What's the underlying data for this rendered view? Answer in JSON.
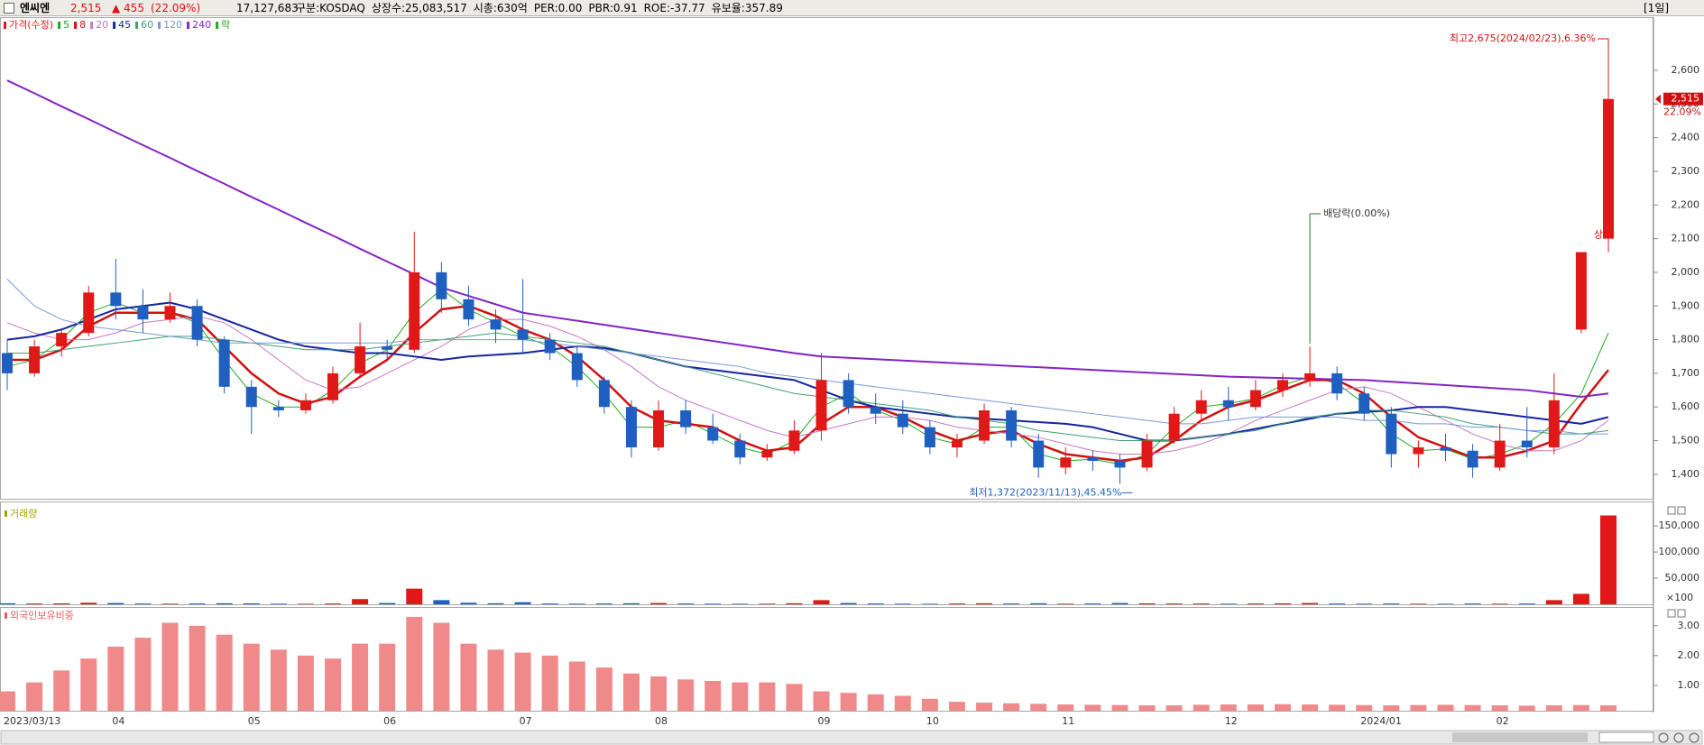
{
  "header": {
    "name": "엔씨엔",
    "price": "2,515",
    "change": "▲ 455",
    "change_pct": "(22.09%)",
    "volume": "17,127,683",
    "fields": [
      "구분:KOSDAQ",
      "상장수:25,083,517",
      "시총:630억",
      "PER:0.00",
      "PBR:0.91",
      "ROE:-37.77",
      "유보율:357.89"
    ],
    "period": "[1일]"
  },
  "chart_data": [
    {
      "type": "candlestick",
      "legend_price": "가격(수정)",
      "legend_ex_dividend": "락",
      "up_color": "#e01818",
      "down_color": "#1f5fbf",
      "categories": [
        "2023/03/13",
        null,
        null,
        null,
        "04",
        null,
        null,
        null,
        null,
        "05",
        null,
        null,
        null,
        null,
        "06",
        null,
        null,
        null,
        null,
        "07",
        null,
        null,
        null,
        null,
        "08",
        null,
        null,
        null,
        null,
        null,
        "09",
        null,
        null,
        null,
        "10",
        null,
        null,
        null,
        null,
        "11",
        null,
        null,
        null,
        null,
        null,
        "12",
        null,
        null,
        null,
        null,
        "2024/01",
        null,
        null,
        null,
        null,
        "02",
        null,
        null,
        null,
        null
      ],
      "open": [
        1760,
        1700,
        1780,
        1820,
        1940,
        1900,
        1860,
        1900,
        1800,
        1660,
        1600,
        1590,
        1620,
        1700,
        1780,
        1770,
        2000,
        1920,
        1860,
        1830,
        1800,
        1760,
        1680,
        1600,
        1480,
        1590,
        1540,
        1500,
        1450,
        1470,
        1530,
        1680,
        1600,
        1580,
        1540,
        1480,
        1500,
        1590,
        1500,
        1420,
        1450,
        1440,
        1420,
        1500,
        1580,
        1620,
        1600,
        1650,
        1680,
        1700,
        1640,
        1580,
        1460,
        1480,
        1470,
        1420,
        1500,
        1480,
        1830,
        2100
      ],
      "high": [
        1800,
        1800,
        1830,
        1960,
        2040,
        1950,
        1940,
        1920,
        1810,
        1680,
        1620,
        1640,
        1720,
        1850,
        1800,
        2120,
        2030,
        1960,
        1890,
        1980,
        1820,
        1780,
        1690,
        1620,
        1620,
        1620,
        1580,
        1520,
        1490,
        1560,
        1760,
        1700,
        1640,
        1620,
        1560,
        1520,
        1610,
        1600,
        1520,
        1480,
        1470,
        1460,
        1520,
        1600,
        1650,
        1660,
        1680,
        1700,
        1780,
        1720,
        1660,
        1600,
        1500,
        1520,
        1490,
        1550,
        1600,
        1700,
        2060,
        2675
      ],
      "low": [
        1650,
        1690,
        1750,
        1810,
        1860,
        1820,
        1850,
        1780,
        1640,
        1520,
        1570,
        1580,
        1610,
        1690,
        1740,
        1760,
        1880,
        1840,
        1790,
        1760,
        1740,
        1660,
        1580,
        1450,
        1470,
        1520,
        1490,
        1430,
        1440,
        1460,
        1500,
        1580,
        1550,
        1520,
        1460,
        1450,
        1490,
        1480,
        1390,
        1400,
        1410,
        1372,
        1410,
        1490,
        1560,
        1560,
        1590,
        1630,
        1660,
        1620,
        1560,
        1420,
        1420,
        1440,
        1390,
        1410,
        1450,
        1460,
        1820,
        2060
      ],
      "close": [
        1700,
        1780,
        1820,
        1940,
        1900,
        1860,
        1900,
        1800,
        1660,
        1600,
        1590,
        1620,
        1700,
        1780,
        1770,
        2000,
        1920,
        1860,
        1830,
        1800,
        1760,
        1680,
        1600,
        1480,
        1590,
        1540,
        1500,
        1450,
        1470,
        1530,
        1680,
        1600,
        1580,
        1540,
        1480,
        1500,
        1590,
        1500,
        1420,
        1450,
        1440,
        1420,
        1500,
        1580,
        1620,
        1600,
        1650,
        1680,
        1700,
        1640,
        1580,
        1460,
        1480,
        1470,
        1420,
        1500,
        1480,
        1620,
        2060,
        2515
      ],
      "series": [
        {
          "name": "5",
          "color": "#22aa22",
          "width": 1,
          "values": [
            1720,
            1740,
            1800,
            1880,
            1910,
            1880,
            1880,
            1850,
            1740,
            1640,
            1600,
            1600,
            1650,
            1730,
            1770,
            1880,
            1950,
            1890,
            1850,
            1810,
            1780,
            1720,
            1640,
            1540,
            1540,
            1560,
            1520,
            1480,
            1460,
            1500,
            1600,
            1640,
            1590,
            1560,
            1510,
            1490,
            1540,
            1540,
            1460,
            1440,
            1445,
            1430,
            1460,
            1540,
            1600,
            1610,
            1625,
            1665,
            1690,
            1670,
            1610,
            1520,
            1470,
            1475,
            1445,
            1460,
            1490,
            1550,
            1640,
            1820
          ]
        },
        {
          "name": "8",
          "color": "#d01010",
          "width": 2.5,
          "values": [
            1740,
            1740,
            1770,
            1840,
            1880,
            1880,
            1880,
            1860,
            1780,
            1700,
            1640,
            1610,
            1630,
            1690,
            1740,
            1820,
            1890,
            1900,
            1870,
            1830,
            1800,
            1750,
            1680,
            1600,
            1560,
            1550,
            1540,
            1500,
            1470,
            1480,
            1550,
            1600,
            1600,
            1570,
            1530,
            1500,
            1520,
            1530,
            1490,
            1460,
            1450,
            1440,
            1450,
            1500,
            1560,
            1600,
            1620,
            1650,
            1680,
            1680,
            1640,
            1570,
            1510,
            1480,
            1450,
            1450,
            1470,
            1500,
            1610,
            1710
          ]
        },
        {
          "name": "20",
          "color": "#c878c8",
          "width": 1,
          "values": [
            1850,
            1820,
            1800,
            1800,
            1820,
            1850,
            1860,
            1870,
            1850,
            1800,
            1740,
            1680,
            1650,
            1660,
            1700,
            1740,
            1780,
            1830,
            1860,
            1860,
            1840,
            1810,
            1770,
            1720,
            1660,
            1620,
            1590,
            1560,
            1530,
            1510,
            1530,
            1550,
            1570,
            1570,
            1560,
            1540,
            1530,
            1520,
            1510,
            1490,
            1470,
            1460,
            1460,
            1470,
            1490,
            1520,
            1560,
            1590,
            1620,
            1650,
            1660,
            1640,
            1600,
            1560,
            1520,
            1490,
            1470,
            1470,
            1500,
            1560
          ]
        },
        {
          "name": "45",
          "color": "#1424a0",
          "width": 2,
          "values": [
            1800,
            1810,
            1830,
            1860,
            1890,
            1900,
            1910,
            1890,
            1860,
            1830,
            1800,
            1780,
            1770,
            1760,
            1760,
            1750,
            1740,
            1750,
            1755,
            1760,
            1770,
            1780,
            1775,
            1760,
            1740,
            1720,
            1710,
            1700,
            1690,
            1680,
            1650,
            1620,
            1600,
            1590,
            1580,
            1570,
            1565,
            1560,
            1555,
            1550,
            1540,
            1520,
            1500,
            1500,
            1510,
            1520,
            1535,
            1550,
            1565,
            1580,
            1585,
            1590,
            1600,
            1600,
            1590,
            1580,
            1570,
            1560,
            1550,
            1570
          ]
        },
        {
          "name": "60",
          "color": "#40a070",
          "width": 1,
          "values": [
            1760,
            1760,
            1770,
            1780,
            1790,
            1800,
            1810,
            1810,
            1800,
            1790,
            1780,
            1770,
            1770,
            1770,
            1780,
            1790,
            1800,
            1810,
            1820,
            1810,
            1800,
            1790,
            1780,
            1760,
            1740,
            1720,
            1700,
            1680,
            1660,
            1640,
            1630,
            1620,
            1610,
            1600,
            1590,
            1570,
            1560,
            1550,
            1530,
            1520,
            1510,
            1500,
            1500,
            1500,
            1510,
            1520,
            1530,
            1550,
            1570,
            1580,
            1590,
            1590,
            1580,
            1570,
            1550,
            1540,
            1530,
            1520,
            1520,
            1530
          ]
        },
        {
          "name": "120",
          "color": "#7898d8",
          "width": 1,
          "values": [
            1980,
            1900,
            1860,
            1840,
            1830,
            1820,
            1810,
            1800,
            1790,
            1790,
            1790,
            1790,
            1790,
            1790,
            1790,
            1800,
            1800,
            1800,
            1800,
            1800,
            1790,
            1780,
            1770,
            1760,
            1750,
            1740,
            1730,
            1720,
            1700,
            1690,
            1680,
            1670,
            1660,
            1650,
            1640,
            1630,
            1620,
            1610,
            1600,
            1590,
            1580,
            1570,
            1560,
            1550,
            1550,
            1560,
            1570,
            1570,
            1570,
            1570,
            1560,
            1560,
            1550,
            1550,
            1540,
            1540,
            1530,
            1530,
            1520,
            1520
          ]
        },
        {
          "name": "240",
          "color": "#8424c4",
          "width": 2,
          "values": [
            2570,
            2532,
            2493,
            2455,
            2416,
            2378,
            2340,
            2301,
            2263,
            2224,
            2186,
            2147,
            2109,
            2070,
            2032,
            1994,
            1955,
            1930,
            1905,
            1880,
            1868,
            1856,
            1844,
            1832,
            1820,
            1808,
            1796,
            1784,
            1772,
            1760,
            1750,
            1746,
            1742,
            1738,
            1734,
            1730,
            1726,
            1722,
            1718,
            1714,
            1710,
            1706,
            1702,
            1698,
            1694,
            1690,
            1688,
            1686,
            1684,
            1682,
            1680,
            1675,
            1670,
            1665,
            1660,
            1655,
            1650,
            1640,
            1630,
            1640
          ]
        }
      ],
      "ylim": [
        1330,
        2750
      ],
      "yticks": [
        {
          "value": 1400,
          "label": "1,400"
        },
        {
          "value": 1500,
          "label": "1,500"
        },
        {
          "value": 1600,
          "label": "1,600"
        },
        {
          "value": 1700,
          "label": "1,700"
        },
        {
          "value": 1800,
          "label": "1,800"
        },
        {
          "value": 1900,
          "label": "1,900"
        },
        {
          "value": 2000,
          "label": "2,000"
        },
        {
          "value": 2100,
          "label": "2,100"
        },
        {
          "value": 2200,
          "label": "2,200"
        },
        {
          "value": 2300,
          "label": "2,300"
        },
        {
          "value": 2400,
          "label": "2,400"
        },
        {
          "value": 2500,
          "label": "2,500"
        },
        {
          "value": 2600,
          "label": "2,600"
        }
      ],
      "last_price_label": "2,515",
      "last_change_label": "22.09%",
      "annotation_high": "최고2,675(2024/02/23),6.36%",
      "annotation_low": "최저1,372(2023/11/13),45.45%",
      "annotation_dividend": "배당락(0.00%)",
      "annotation_upper": "상"
    },
    {
      "type": "bar",
      "title": "거래량",
      "unit": "×100",
      "values": [
        2000,
        1500,
        1800,
        3000,
        2500,
        1500,
        1200,
        1500,
        2000,
        1800,
        1200,
        1000,
        1500,
        10000,
        2500,
        30000,
        8000,
        3000,
        2000,
        4000,
        1500,
        1200,
        1500,
        2000,
        2500,
        1500,
        1200,
        1000,
        1200,
        2000,
        8000,
        2500,
        1500,
        1200,
        1000,
        1500,
        2000,
        1500,
        2000,
        1200,
        1500,
        2500,
        1800,
        1500,
        1500,
        1200,
        1500,
        1800,
        2500,
        1500,
        1200,
        1500,
        1200,
        1000,
        1500,
        1200,
        1500,
        8000,
        20000,
        170000
      ],
      "ylim": [
        0,
        195000
      ],
      "yticks": [
        {
          "value": 50000,
          "label": "50,000"
        },
        {
          "value": 100000,
          "label": "100,000"
        },
        {
          "value": 150000,
          "label": "150,000"
        }
      ]
    },
    {
      "type": "bar",
      "title": "외국인보유비중",
      "color": "#f08a8a",
      "values": [
        0.8,
        1.1,
        1.5,
        1.9,
        2.3,
        2.6,
        3.1,
        3.0,
        2.7,
        2.4,
        2.2,
        2.0,
        1.9,
        2.4,
        2.4,
        3.3,
        3.1,
        2.4,
        2.2,
        2.1,
        2.0,
        1.8,
        1.6,
        1.4,
        1.3,
        1.2,
        1.15,
        1.1,
        1.1,
        1.05,
        0.8,
        0.75,
        0.7,
        0.65,
        0.55,
        0.45,
        0.42,
        0.4,
        0.38,
        0.36,
        0.35,
        0.34,
        0.33,
        0.33,
        0.35,
        0.36,
        0.36,
        0.37,
        0.36,
        0.35,
        0.34,
        0.33,
        0.34,
        0.35,
        0.34,
        0.33,
        0.32,
        0.33,
        0.34,
        0.33
      ],
      "ylim": [
        0.15,
        3.6
      ],
      "yticks": [
        {
          "value": 1,
          "label": "1.00"
        },
        {
          "value": 2,
          "label": "2.00"
        },
        {
          "value": 3,
          "label": "3.00"
        }
      ]
    }
  ]
}
